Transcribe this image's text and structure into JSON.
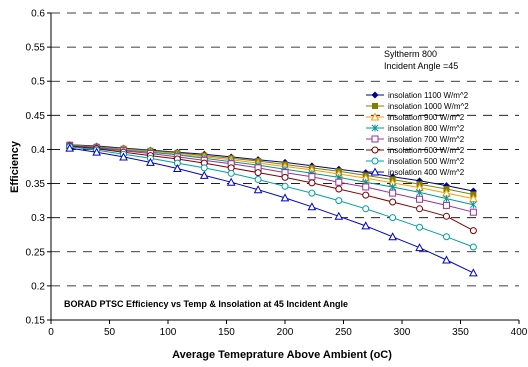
{
  "chart_data": {
    "type": "line",
    "title": "BORAD PTSC Efficiency vs Temp & Insolation at 45 Incident Angle",
    "xlabel": "Average Temeprature Above Ambient (oC)",
    "ylabel": "Efficiency",
    "xlim": [
      0,
      400
    ],
    "ylim": [
      0.15,
      0.6
    ],
    "xticks": [
      0,
      50,
      100,
      150,
      200,
      250,
      300,
      350,
      400
    ],
    "yticks": [
      0.15,
      0.2,
      0.25,
      0.3,
      0.35,
      0.4,
      0.45,
      0.5,
      0.55,
      0.6
    ],
    "grid": "horizontal dashed",
    "legend_position": "right",
    "annotation_line1": "Syltherm 800",
    "annotation_line2": "Incident Angle =45",
    "x": [
      16,
      39,
      62,
      85,
      108,
      131,
      154,
      177,
      200,
      223,
      246,
      269,
      292,
      315,
      338,
      361
    ],
    "series": [
      {
        "name": "insolation 1100 W/m^2",
        "color": "#00008B",
        "marker": "diamond",
        "values": [
          0.407,
          0.405,
          0.402,
          0.399,
          0.396,
          0.393,
          0.389,
          0.385,
          0.381,
          0.376,
          0.371,
          0.366,
          0.36,
          0.354,
          0.347,
          0.339
        ]
      },
      {
        "name": "insolation 1000 W/m^2",
        "color": "#808000",
        "marker": "square",
        "values": [
          0.407,
          0.404,
          0.401,
          0.398,
          0.395,
          0.391,
          0.387,
          0.383,
          0.378,
          0.373,
          0.368,
          0.362,
          0.356,
          0.349,
          0.342,
          0.334
        ]
      },
      {
        "name": "insolation 900 W/m^2",
        "color": "#FF9900",
        "marker": "triangle",
        "values": [
          0.406,
          0.403,
          0.4,
          0.397,
          0.393,
          0.389,
          0.385,
          0.38,
          0.375,
          0.37,
          0.364,
          0.358,
          0.351,
          0.344,
          0.336,
          0.328
        ]
      },
      {
        "name": "insolation 800 W/m^2",
        "color": "#009999",
        "marker": "asterisk",
        "values": [
          0.406,
          0.403,
          0.399,
          0.396,
          0.392,
          0.387,
          0.382,
          0.377,
          0.371,
          0.365,
          0.359,
          0.352,
          0.345,
          0.337,
          0.328,
          0.319
        ]
      },
      {
        "name": "insolation 700 W/m^2",
        "color": "#993399",
        "marker": "square-open",
        "values": [
          0.406,
          0.402,
          0.398,
          0.394,
          0.389,
          0.384,
          0.379,
          0.373,
          0.366,
          0.36,
          0.352,
          0.345,
          0.336,
          0.327,
          0.318,
          0.308
        ]
      },
      {
        "name": "insolation 600 W/m^2",
        "color": "#800000",
        "marker": "circle-open",
        "values": [
          0.405,
          0.401,
          0.396,
          0.391,
          0.386,
          0.38,
          0.373,
          0.366,
          0.359,
          0.351,
          0.342,
          0.333,
          0.323,
          0.313,
          0.302,
          0.281
        ]
      },
      {
        "name": "insolation 500 W/m^2",
        "color": "#00A0A0",
        "marker": "circle-open",
        "values": [
          0.404,
          0.399,
          0.393,
          0.387,
          0.38,
          0.373,
          0.365,
          0.356,
          0.346,
          0.336,
          0.325,
          0.313,
          0.3,
          0.286,
          0.272,
          0.257
        ]
      },
      {
        "name": "insolation 400 W/m^2",
        "color": "#0000CC",
        "marker": "triangle",
        "values": [
          0.402,
          0.396,
          0.389,
          0.381,
          0.372,
          0.362,
          0.352,
          0.341,
          0.329,
          0.316,
          0.302,
          0.288,
          0.272,
          0.256,
          0.238,
          0.219
        ]
      }
    ]
  }
}
